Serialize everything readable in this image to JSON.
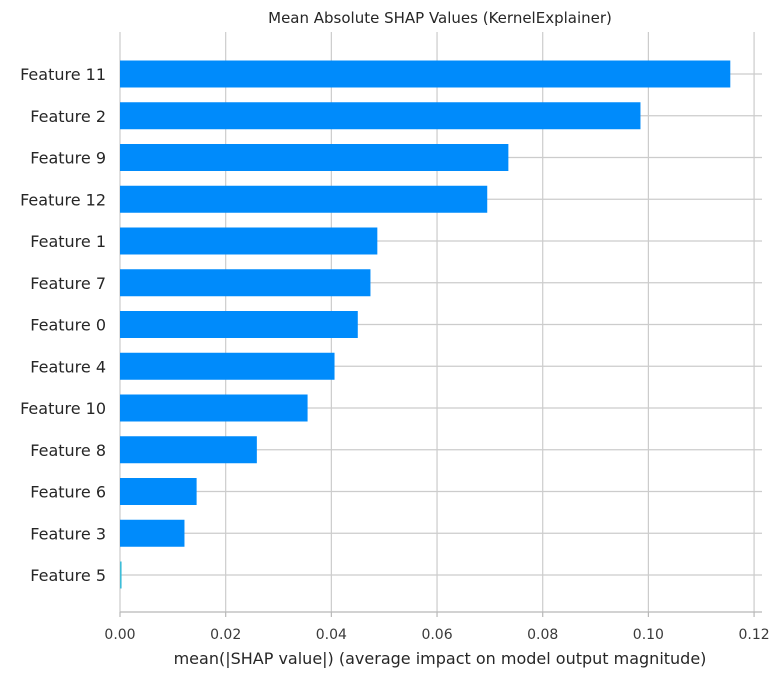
{
  "chart_data": {
    "type": "bar",
    "orientation": "horizontal",
    "title": "Mean Absolute SHAP Values (KernelExplainer)",
    "xlabel": "mean(|SHAP value|) (average impact on model output magnitude)",
    "ylabel": "",
    "categories": [
      "Feature 11",
      "Feature 2",
      "Feature 9",
      "Feature 12",
      "Feature 1",
      "Feature 7",
      "Feature 0",
      "Feature 4",
      "Feature 10",
      "Feature 8",
      "Feature 6",
      "Feature 3",
      "Feature 5"
    ],
    "values": [
      0.1155,
      0.0985,
      0.0735,
      0.0695,
      0.0487,
      0.0474,
      0.045,
      0.0406,
      0.0355,
      0.0259,
      0.0145,
      0.0122,
      0.0003
    ],
    "xlim": [
      0,
      0.1215
    ],
    "xticks": [
      "0.00",
      "0.02",
      "0.04",
      "0.06",
      "0.08",
      "0.10",
      "0.12"
    ],
    "xtick_values": [
      0,
      0.02,
      0.04,
      0.06,
      0.08,
      0.1,
      0.12
    ],
    "grid": "vertical and horizontal, light gray",
    "colors": {
      "bar": "#008bfb",
      "last_bar": "#3dbdd8",
      "grid": "#cccccc",
      "axis": "#b8b8b8"
    }
  }
}
